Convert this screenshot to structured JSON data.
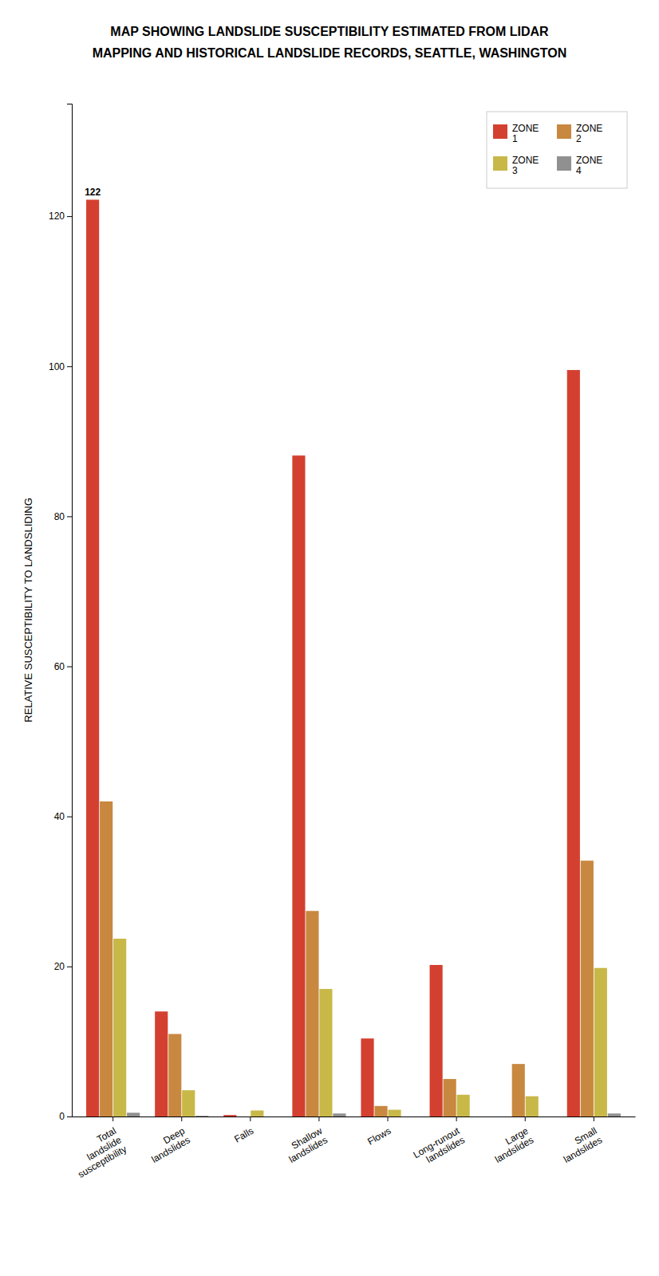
{
  "chart_data": {
    "type": "bar",
    "title": "MAP SHOWING LANDSLIDE SUSCEPTIBILITY ESTIMATED FROM LIDAR",
    "subtitle": "MAPPING AND HISTORICAL LANDSLIDE RECORDS, SEATTLE, WASHINGTON",
    "ylabel": "RELATIVE SUSCEPTIBILITY TO LANDSLIDING",
    "categories": [
      "Total\nlandslide\nsusceptibility",
      "Deep\nlandslides",
      "Falls",
      "Shallow\nlandslides",
      "Flows",
      "Long-runout\nlandslides",
      "Large\nlandslides",
      "Small\nlandslides"
    ],
    "series": [
      {
        "name": "ZONE\n1",
        "color": "#d44030",
        "values": [
          122.2,
          14.0,
          0.2,
          88.1,
          10.4,
          20.2,
          0.0,
          99.5
        ],
        "value_labels": [
          "122",
          null,
          null,
          null,
          null,
          null,
          null,
          null
        ]
      },
      {
        "name": "ZONE\n2",
        "color": "#c88840",
        "values": [
          42.0,
          11.0,
          0.0,
          27.4,
          1.4,
          5.0,
          7.0,
          34.1
        ]
      },
      {
        "name": "ZONE\n3",
        "color": "#c8b848",
        "values": [
          23.7,
          3.5,
          0.8,
          17.0,
          0.9,
          2.9,
          2.7,
          19.8
        ]
      },
      {
        "name": "ZONE\n4",
        "color": "#909090",
        "values": [
          0.5,
          0.1,
          0.0,
          0.4,
          0.0,
          0.0,
          0.0,
          0.4
        ]
      }
    ],
    "ylim": [
      0,
      135
    ],
    "yticks": [
      0,
      20,
      40,
      60,
      80,
      100,
      120
    ],
    "grid": false,
    "legend": "upper right"
  }
}
